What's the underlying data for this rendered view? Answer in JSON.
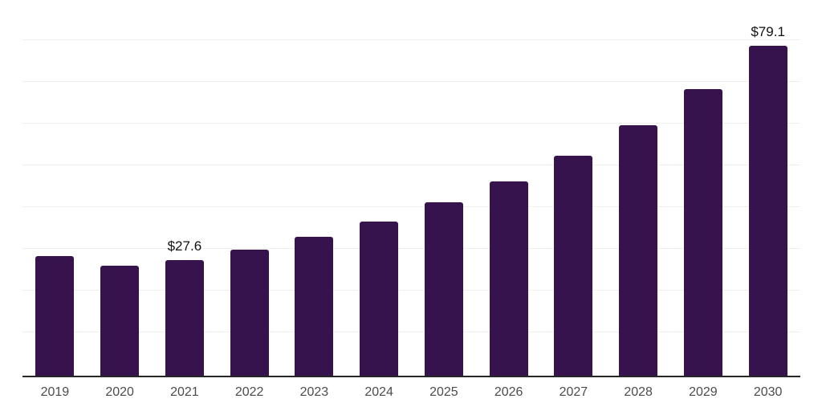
{
  "chart_data": {
    "type": "bar",
    "title": "",
    "xlabel": "",
    "ylabel": "",
    "categories": [
      "2019",
      "2020",
      "2021",
      "2022",
      "2023",
      "2024",
      "2025",
      "2026",
      "2027",
      "2028",
      "2029",
      "2030"
    ],
    "values": [
      28.6,
      26.4,
      27.6,
      30.2,
      33.3,
      37.0,
      41.6,
      46.6,
      52.6,
      60.0,
      68.7,
      79.1
    ],
    "point_labels": [
      "",
      "",
      "$27.6",
      "",
      "",
      "",
      "",
      "",
      "",
      "",
      "",
      "$79.1"
    ],
    "ylim": [
      0,
      90
    ],
    "gridline_step": 10,
    "grid": true,
    "legend": "none",
    "style": {
      "bar_color": "#36134d",
      "grid_color": "#efefef",
      "axis_color": "#262626",
      "tick_label_color": "#4c4c4c",
      "value_label_color": "#111111",
      "background_color": "#ffffff"
    }
  }
}
